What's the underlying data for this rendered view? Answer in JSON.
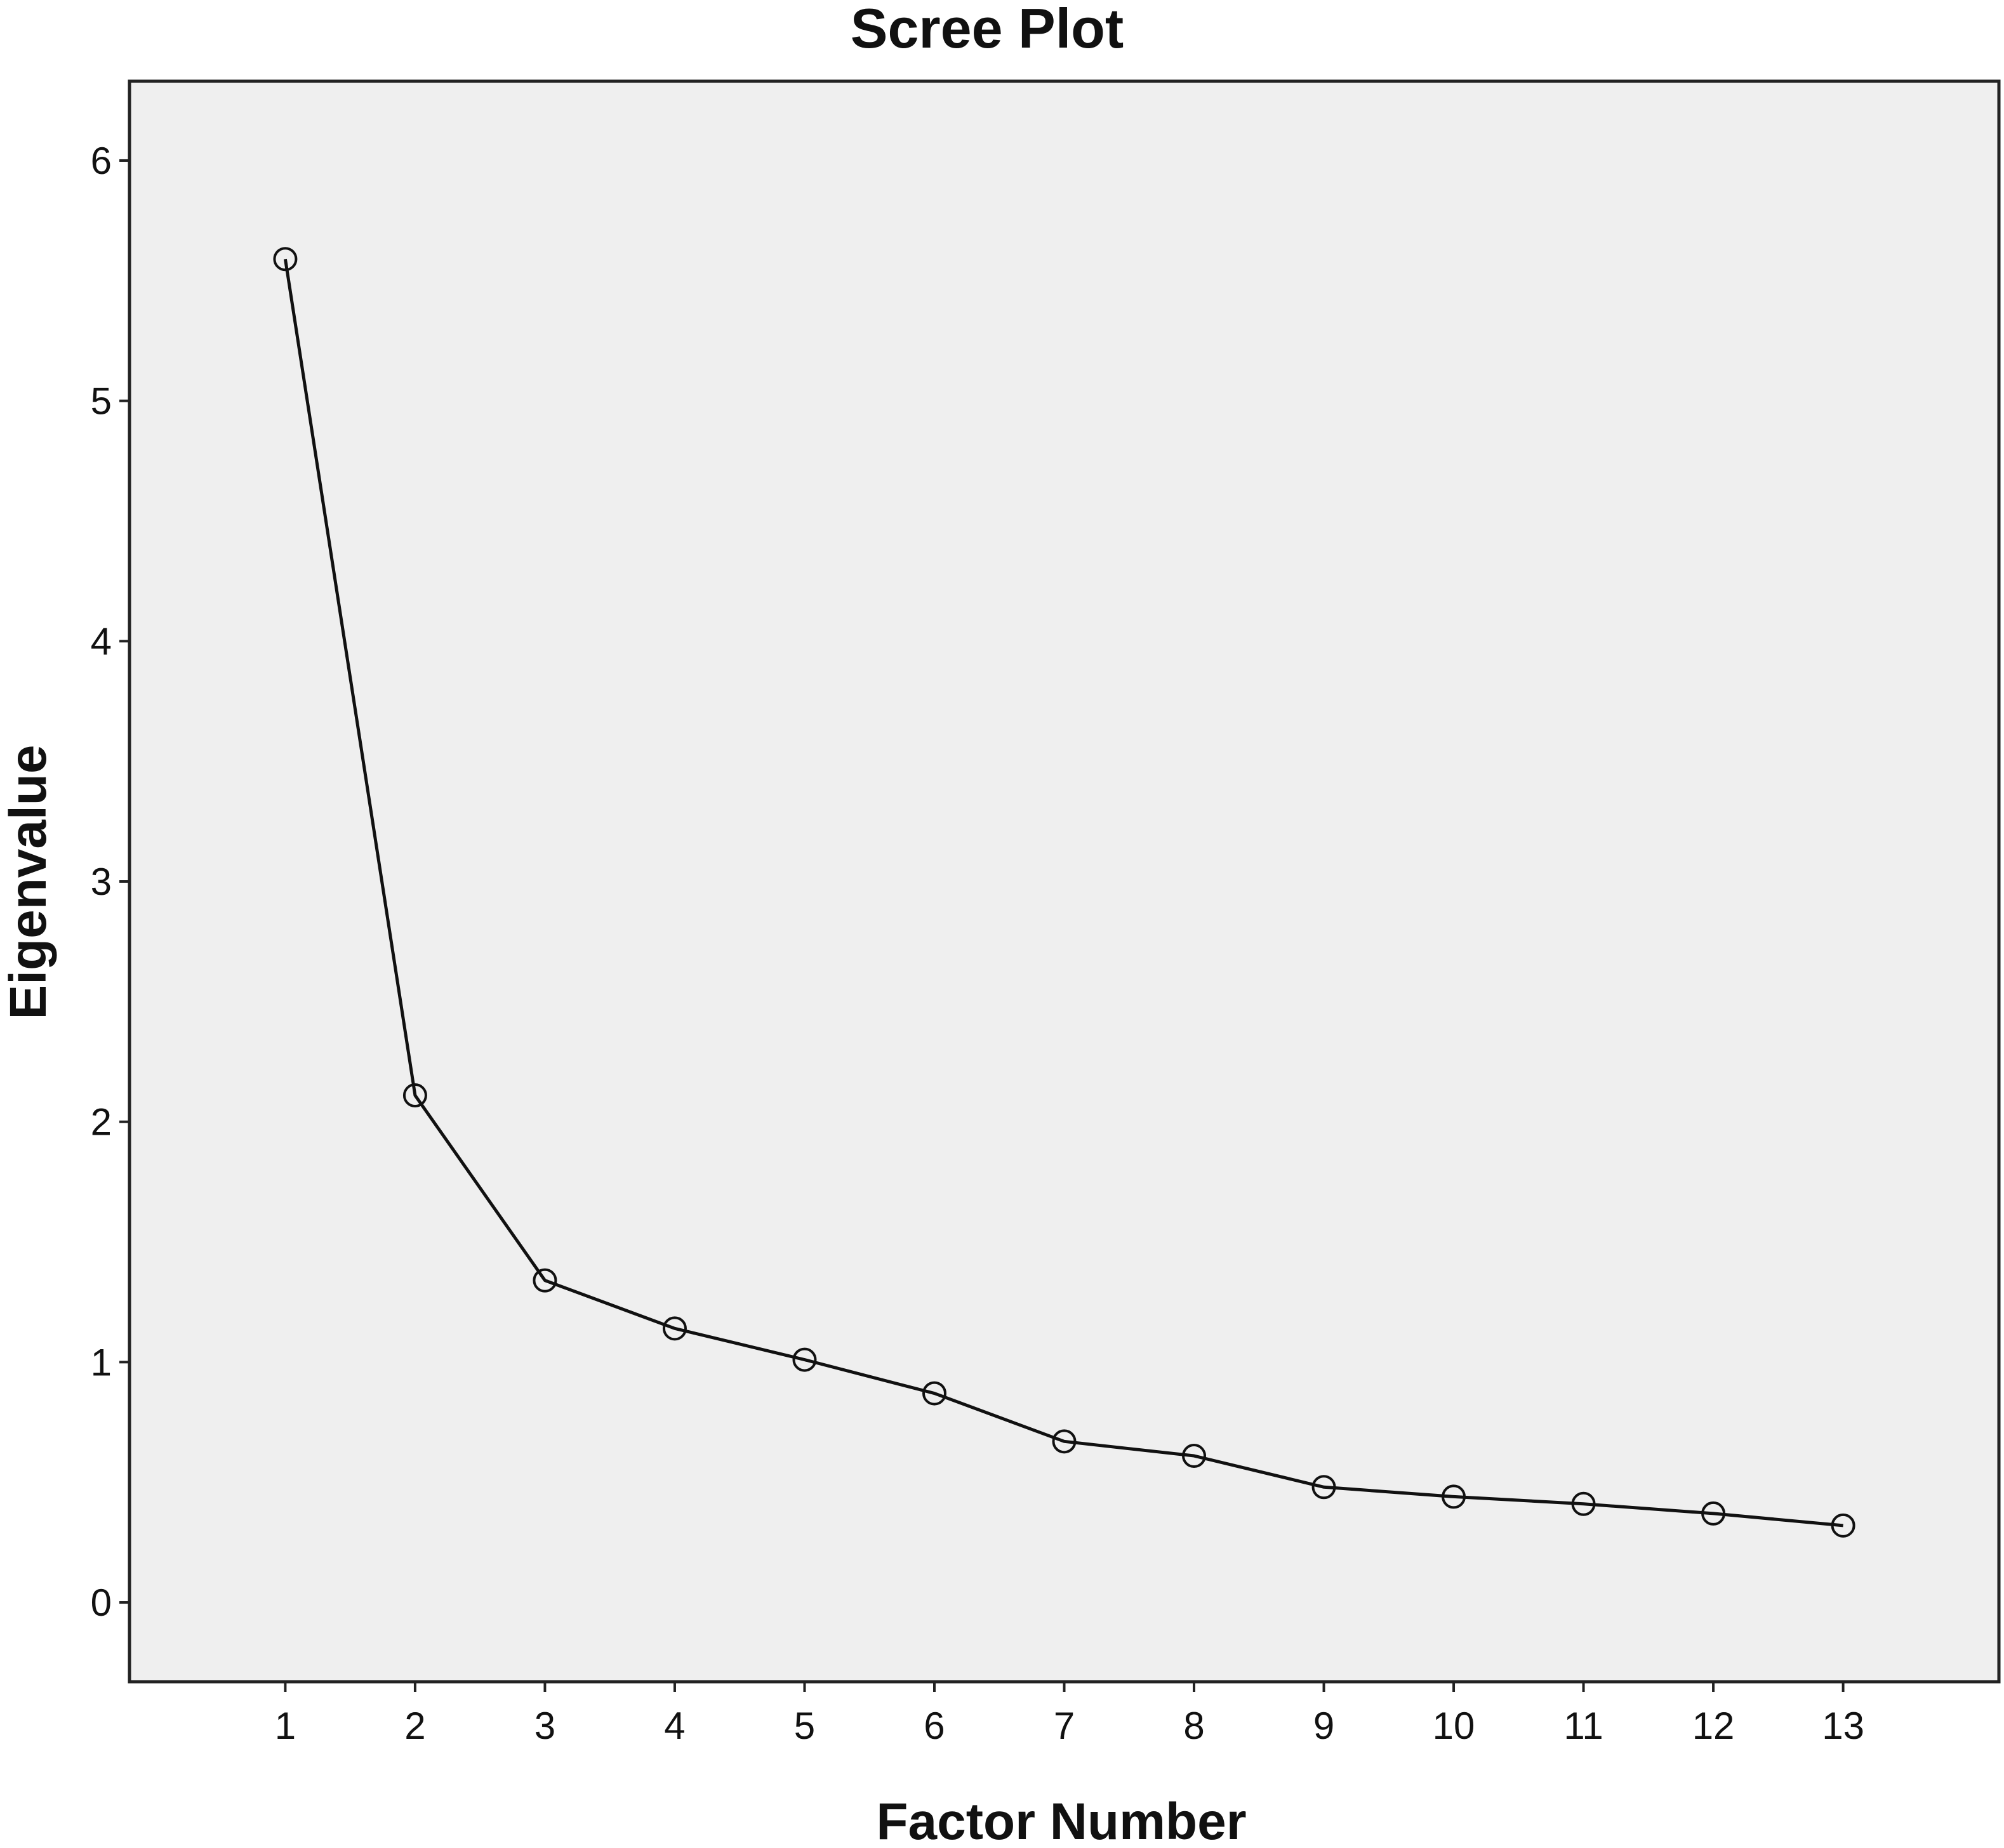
{
  "chart_data": {
    "type": "line",
    "title": "Scree Plot",
    "xlabel": "Factor Number",
    "ylabel": "Eigenvalue",
    "x": [
      1,
      2,
      3,
      4,
      5,
      6,
      7,
      8,
      9,
      10,
      11,
      12,
      13
    ],
    "x_tick_labels": [
      "1",
      "2",
      "3",
      "4",
      "5",
      "6",
      "7",
      "8",
      "9",
      "10",
      "11",
      "12",
      "13"
    ],
    "y_tick_labels": [
      "0",
      "1",
      "2",
      "3",
      "4",
      "5",
      "6"
    ],
    "y_ticks": [
      0,
      1,
      2,
      3,
      4,
      5,
      6
    ],
    "series": [
      {
        "values": [
          5.59,
          2.11,
          1.34,
          1.14,
          1.01,
          0.87,
          0.67,
          0.61,
          0.48,
          0.44,
          0.41,
          0.37,
          0.32
        ]
      }
    ],
    "xlim": [
      -0.2,
      14.2
    ],
    "ylim": [
      -0.33,
      6.33
    ],
    "grid": false,
    "legend": "none",
    "marker": "open-circle",
    "colors": {
      "plot_background": "#efefef",
      "line": "#111111",
      "frame": "#222222"
    }
  }
}
